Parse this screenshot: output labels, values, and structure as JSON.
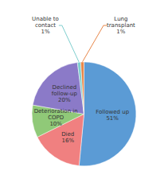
{
  "chart_data": {
    "type": "pie",
    "categories": [
      "Followed up",
      "Died",
      "Deterioration in\nCOPD",
      "Declined\nfollow-up",
      "Unable to\ncontact",
      "Lung\ntransplant"
    ],
    "values": [
      51,
      16,
      10,
      20,
      1,
      1
    ],
    "value_labels": [
      "51%",
      "16%",
      "10%",
      "20%",
      "1%",
      "1%"
    ],
    "colors": [
      "#5b9bd5",
      "#f08080",
      "#90c978",
      "#8b7ac8",
      "#7ecece",
      "#e8874a"
    ],
    "data_labels": true,
    "legend": false
  }
}
